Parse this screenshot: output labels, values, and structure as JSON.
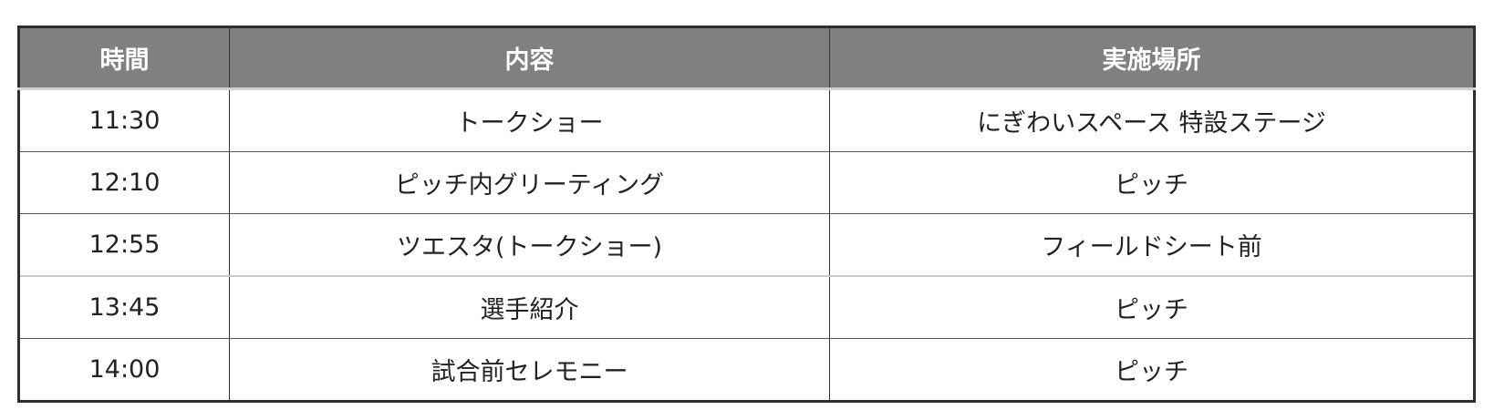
{
  "table": {
    "headers": [
      "時間",
      "内容",
      "実施場所"
    ],
    "rows": [
      [
        "11:30",
        "トークショー",
        "にぎわいスペース 特設ステージ"
      ],
      [
        "12:10",
        "ピッチ内グリーティング",
        "ピッチ"
      ],
      [
        "12:55",
        "ツエスタ(トークショー)",
        "フィールドシート前"
      ],
      [
        "13:45",
        "選手紹介",
        "ピッチ"
      ],
      [
        "14:00",
        "試合前セレモニー",
        "ピッチ"
      ]
    ]
  },
  "colors": {
    "header_bg": "#808080",
    "header_text": "#ffffff",
    "border": "#2e2e2e"
  }
}
